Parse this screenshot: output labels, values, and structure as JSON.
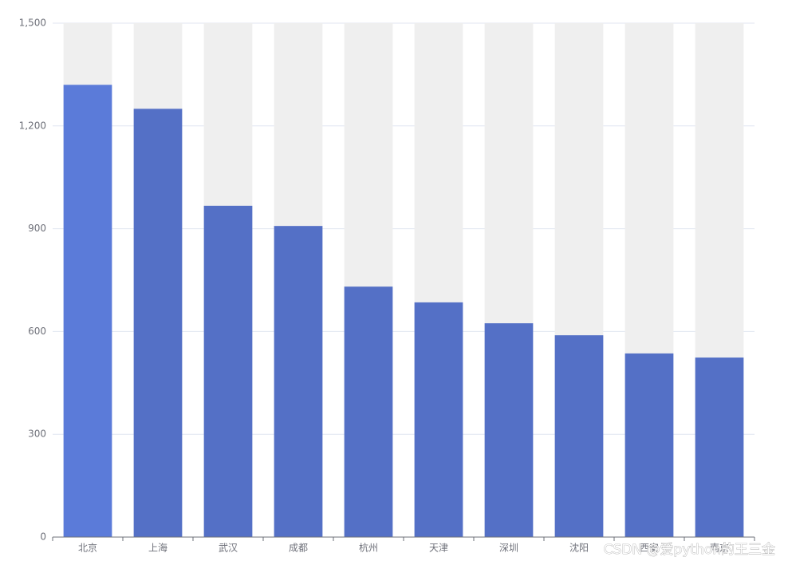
{
  "chart_data": {
    "type": "bar",
    "categories": [
      "北京",
      "上海",
      "武汉",
      "成都",
      "杭州",
      "天津",
      "深圳",
      "沈阳",
      "西安",
      "南京"
    ],
    "values": [
      1320,
      1250,
      967,
      908,
      731,
      685,
      624,
      589,
      536,
      524
    ],
    "colors": [
      "#5b7bd9",
      "#5470c6",
      "#5470c6",
      "#5470c6",
      "#5470c6",
      "#5470c6",
      "#5470c6",
      "#5470c6",
      "#5470c6",
      "#5470c6"
    ],
    "background_color": "#efefef",
    "show_background": true,
    "ylim": [
      0,
      1500
    ],
    "yticks": [
      0,
      300,
      600,
      900,
      {
        "value": 1200,
        "label": "1,200"
      },
      {
        "value": 1500,
        "label": "1,500"
      }
    ],
    "grid": true
  },
  "watermark": "CSDN @爱python的王三金"
}
